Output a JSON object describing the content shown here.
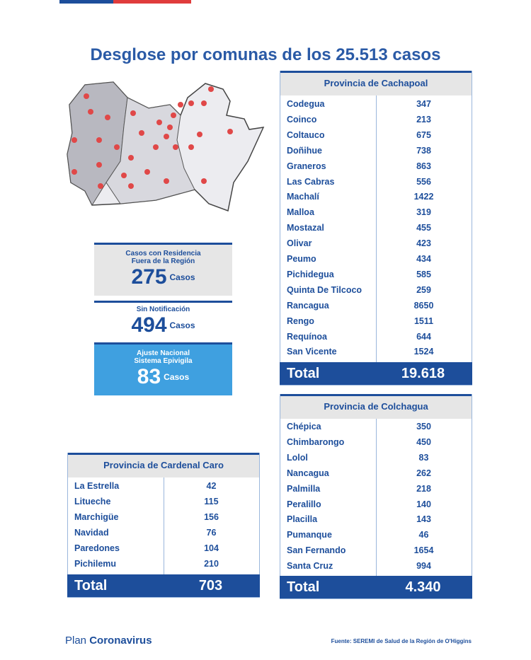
{
  "title": "Desglose por comunas de los 25.513 casos",
  "boxes": [
    {
      "label": "Casos con Residencia\nFuera de la Región",
      "number": "275",
      "unit": "Casos"
    },
    {
      "label": "Sin Notificación",
      "number": "494",
      "unit": "Casos"
    },
    {
      "label": "Ajuste Nacional\nSistema Epivigila",
      "number": "83",
      "unit": "Casos"
    }
  ],
  "tables": [
    {
      "title": "Provincia de Cachapoal",
      "rows": [
        [
          "Codegua",
          "347"
        ],
        [
          "Coinco",
          "213"
        ],
        [
          "Coltauco",
          "675"
        ],
        [
          "Doñihue",
          "738"
        ],
        [
          "Graneros",
          "863"
        ],
        [
          "Las Cabras",
          "556"
        ],
        [
          "Machalí",
          "1422"
        ],
        [
          "Malloa",
          "319"
        ],
        [
          "Mostazal",
          "455"
        ],
        [
          "Olivar",
          "423"
        ],
        [
          "Peumo",
          "434"
        ],
        [
          "Pichidegua",
          "585"
        ],
        [
          "Quinta De Tilcoco",
          "259"
        ],
        [
          "Rancagua",
          "8650"
        ],
        [
          "Rengo",
          "1511"
        ],
        [
          "Requínoa",
          "644"
        ],
        [
          "San Vicente",
          "1524"
        ]
      ],
      "total_label": "Total",
      "total": "19.618"
    },
    {
      "title": "Provincia de Colchagua",
      "rows": [
        [
          "Chépica",
          "350"
        ],
        [
          "Chimbarongo",
          "450"
        ],
        [
          "Lolol",
          "83"
        ],
        [
          "Nancagua",
          "262"
        ],
        [
          "Palmilla",
          "218"
        ],
        [
          "Peralillo",
          "140"
        ],
        [
          "Placilla",
          "143"
        ],
        [
          "Pumanque",
          "46"
        ],
        [
          "San Fernando",
          "1654"
        ],
        [
          "Santa Cruz",
          "994"
        ]
      ],
      "total_label": "Total",
      "total": "4.340"
    },
    {
      "title": "Provincia de Cardenal Caro",
      "rows": [
        [
          "La Estrella",
          "42"
        ],
        [
          "Litueche",
          "115"
        ],
        [
          "Marchigüe",
          "156"
        ],
        [
          "Navidad",
          "76"
        ],
        [
          "Paredones",
          "104"
        ],
        [
          "Pichilemu",
          "210"
        ]
      ],
      "total_label": "Total",
      "total": "703"
    }
  ],
  "footer": {
    "plan": "Plan",
    "brand": "Coronavirus",
    "source": "Fuente: SEREMI de Salud de la Región de O'Higgins"
  }
}
